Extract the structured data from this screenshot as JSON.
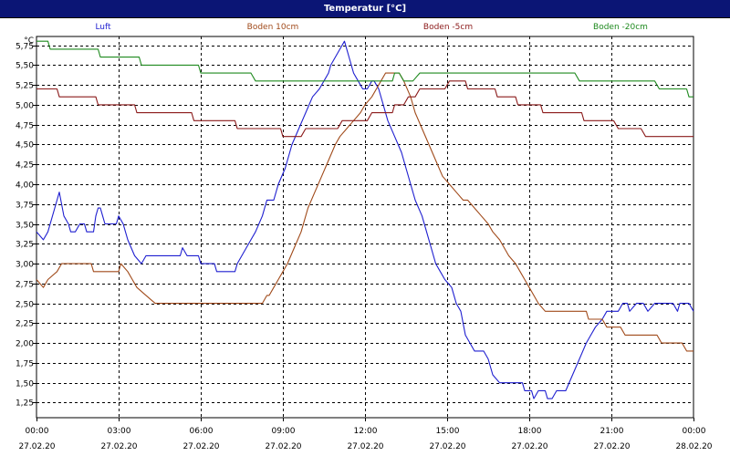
{
  "window": {
    "title": "Temperatur [°C]"
  },
  "colors": {
    "titlebar_bg": "#0b1575",
    "grid": "#000000",
    "series": [
      "#1f1fd0",
      "#a04a1a",
      "#8b1a1a",
      "#1f8a1f"
    ]
  },
  "chart_data": {
    "type": "line",
    "title": "Temperatur [°C]",
    "ylabel": "°C",
    "xlabel": "",
    "ylim": [
      1.06,
      5.86
    ],
    "xlim": [
      "27.02.20 00:00",
      "28.02.20 00:00"
    ],
    "grid": true,
    "legend_position": "top",
    "y_ticks": [
      "1,25",
      "1,50",
      "1,75",
      "2,00",
      "2,25",
      "2,50",
      "2,75",
      "3,00",
      "3,25",
      "3,50",
      "3,75",
      "4,00",
      "4,25",
      "4,50",
      "4,75",
      "5,00",
      "5,25",
      "5,50",
      "5,75"
    ],
    "x_ticks": [
      {
        "time": "00:00",
        "date": "27.02.20"
      },
      {
        "time": "03:00",
        "date": "27.02.20"
      },
      {
        "time": "06:00",
        "date": "27.02.20"
      },
      {
        "time": "09:00",
        "date": "27.02.20"
      },
      {
        "time": "12:00",
        "date": "27.02.20"
      },
      {
        "time": "15:00",
        "date": "27.02.20"
      },
      {
        "time": "18:00",
        "date": "27.02.20"
      },
      {
        "time": "21:00",
        "date": "27.02.20"
      },
      {
        "time": "00:00",
        "date": "28.02.20"
      }
    ],
    "series": [
      {
        "name": "Luft",
        "points": [
          [
            "00:00",
            3.4
          ],
          [
            "00:15",
            3.3
          ],
          [
            "00:25",
            3.4
          ],
          [
            "00:40",
            3.7
          ],
          [
            "00:45",
            3.8
          ],
          [
            "00:50",
            3.9
          ],
          [
            "01:00",
            3.6
          ],
          [
            "01:10",
            3.5
          ],
          [
            "01:15",
            3.4
          ],
          [
            "01:25",
            3.4
          ],
          [
            "01:35",
            3.5
          ],
          [
            "01:45",
            3.5
          ],
          [
            "01:50",
            3.4
          ],
          [
            "02:05",
            3.4
          ],
          [
            "02:10",
            3.6
          ],
          [
            "02:15",
            3.7
          ],
          [
            "02:20",
            3.7
          ],
          [
            "02:25",
            3.6
          ],
          [
            "02:30",
            3.5
          ],
          [
            "02:55",
            3.5
          ],
          [
            "03:00",
            3.6
          ],
          [
            "03:10",
            3.5
          ],
          [
            "03:20",
            3.3
          ],
          [
            "03:35",
            3.1
          ],
          [
            "03:50",
            3.0
          ],
          [
            "04:00",
            3.1
          ],
          [
            "05:15",
            3.1
          ],
          [
            "05:20",
            3.2
          ],
          [
            "05:30",
            3.1
          ],
          [
            "05:55",
            3.1
          ],
          [
            "06:00",
            3.0
          ],
          [
            "06:30",
            3.0
          ],
          [
            "06:35",
            2.9
          ],
          [
            "07:15",
            2.9
          ],
          [
            "07:20",
            3.0
          ],
          [
            "07:50",
            3.3
          ],
          [
            "08:00",
            3.4
          ],
          [
            "08:15",
            3.6
          ],
          [
            "08:25",
            3.8
          ],
          [
            "08:40",
            3.8
          ],
          [
            "08:50",
            4.0
          ],
          [
            "09:05",
            4.2
          ],
          [
            "09:20",
            4.5
          ],
          [
            "09:35",
            4.7
          ],
          [
            "09:50",
            4.9
          ],
          [
            "10:05",
            5.1
          ],
          [
            "10:20",
            5.2
          ],
          [
            "10:30",
            5.3
          ],
          [
            "10:40",
            5.4
          ],
          [
            "10:45",
            5.5
          ],
          [
            "10:55",
            5.6
          ],
          [
            "11:05",
            5.7
          ],
          [
            "11:15",
            5.8
          ],
          [
            "11:25",
            5.6
          ],
          [
            "11:35",
            5.4
          ],
          [
            "11:45",
            5.3
          ],
          [
            "11:55",
            5.2
          ],
          [
            "12:05",
            5.2
          ],
          [
            "12:15",
            5.3
          ],
          [
            "12:20",
            5.3
          ],
          [
            "12:30",
            5.2
          ],
          [
            "12:40",
            5.0
          ],
          [
            "12:50",
            4.8
          ],
          [
            "13:05",
            4.6
          ],
          [
            "13:20",
            4.4
          ],
          [
            "13:30",
            4.2
          ],
          [
            "13:40",
            4.0
          ],
          [
            "13:50",
            3.8
          ],
          [
            "14:05",
            3.6
          ],
          [
            "14:15",
            3.4
          ],
          [
            "14:25",
            3.2
          ],
          [
            "14:35",
            3.0
          ],
          [
            "14:45",
            2.9
          ],
          [
            "14:55",
            2.8
          ],
          [
            "15:10",
            2.7
          ],
          [
            "15:20",
            2.5
          ],
          [
            "15:30",
            2.4
          ],
          [
            "15:40",
            2.1
          ],
          [
            "15:50",
            2.0
          ],
          [
            "16:00",
            1.9
          ],
          [
            "16:20",
            1.9
          ],
          [
            "16:30",
            1.8
          ],
          [
            "16:40",
            1.6
          ],
          [
            "16:55",
            1.5
          ],
          [
            "17:45",
            1.5
          ],
          [
            "17:50",
            1.4
          ],
          [
            "18:05",
            1.4
          ],
          [
            "18:10",
            1.3
          ],
          [
            "18:20",
            1.4
          ],
          [
            "18:35",
            1.4
          ],
          [
            "18:40",
            1.3
          ],
          [
            "18:50",
            1.3
          ],
          [
            "19:00",
            1.4
          ],
          [
            "19:20",
            1.4
          ],
          [
            "19:35",
            1.6
          ],
          [
            "19:50",
            1.8
          ],
          [
            "20:05",
            2.0
          ],
          [
            "20:15",
            2.1
          ],
          [
            "20:25",
            2.2
          ],
          [
            "20:40",
            2.3
          ],
          [
            "20:50",
            2.4
          ],
          [
            "21:15",
            2.4
          ],
          [
            "21:25",
            2.5
          ],
          [
            "21:35",
            2.5
          ],
          [
            "21:40",
            2.4
          ],
          [
            "21:55",
            2.5
          ],
          [
            "22:10",
            2.5
          ],
          [
            "22:20",
            2.4
          ],
          [
            "22:35",
            2.5
          ],
          [
            "23:15",
            2.5
          ],
          [
            "23:25",
            2.4
          ],
          [
            "23:30",
            2.5
          ],
          [
            "23:50",
            2.5
          ],
          [
            "24:00",
            2.4
          ]
        ]
      },
      {
        "name": "Boden 10cm",
        "points": [
          [
            "00:00",
            2.8
          ],
          [
            "00:15",
            2.7
          ],
          [
            "00:25",
            2.8
          ],
          [
            "00:45",
            2.9
          ],
          [
            "00:55",
            3.0
          ],
          [
            "02:00",
            3.0
          ],
          [
            "02:05",
            2.9
          ],
          [
            "03:00",
            2.9
          ],
          [
            "03:05",
            3.0
          ],
          [
            "03:20",
            2.9
          ],
          [
            "03:30",
            2.8
          ],
          [
            "03:40",
            2.7
          ],
          [
            "04:00",
            2.6
          ],
          [
            "04:20",
            2.5
          ],
          [
            "04:30",
            2.5
          ],
          [
            "08:15",
            2.5
          ],
          [
            "08:25",
            2.6
          ],
          [
            "08:30",
            2.6
          ],
          [
            "08:40",
            2.7
          ],
          [
            "08:50",
            2.8
          ],
          [
            "09:00",
            2.9
          ],
          [
            "09:10",
            3.0
          ],
          [
            "09:25",
            3.2
          ],
          [
            "09:40",
            3.4
          ],
          [
            "09:55",
            3.7
          ],
          [
            "10:10",
            3.9
          ],
          [
            "10:25",
            4.1
          ],
          [
            "10:40",
            4.3
          ],
          [
            "10:55",
            4.5
          ],
          [
            "11:05",
            4.6
          ],
          [
            "11:20",
            4.7
          ],
          [
            "11:35",
            4.8
          ],
          [
            "11:50",
            4.9
          ],
          [
            "12:00",
            5.0
          ],
          [
            "12:15",
            5.1
          ],
          [
            "12:25",
            5.2
          ],
          [
            "12:35",
            5.3
          ],
          [
            "12:45",
            5.4
          ],
          [
            "13:15",
            5.4
          ],
          [
            "13:25",
            5.3
          ],
          [
            "13:40",
            5.1
          ],
          [
            "13:50",
            4.9
          ],
          [
            "14:05",
            4.7
          ],
          [
            "14:20",
            4.5
          ],
          [
            "14:35",
            4.3
          ],
          [
            "14:50",
            4.1
          ],
          [
            "15:05",
            4.0
          ],
          [
            "15:20",
            3.9
          ],
          [
            "15:35",
            3.8
          ],
          [
            "15:45",
            3.8
          ],
          [
            "16:00",
            3.7
          ],
          [
            "16:15",
            3.6
          ],
          [
            "16:30",
            3.5
          ],
          [
            "16:40",
            3.4
          ],
          [
            "16:55",
            3.3
          ],
          [
            "17:05",
            3.2
          ],
          [
            "17:15",
            3.1
          ],
          [
            "17:30",
            3.0
          ],
          [
            "17:40",
            2.9
          ],
          [
            "17:50",
            2.8
          ],
          [
            "18:00",
            2.7
          ],
          [
            "18:10",
            2.6
          ],
          [
            "18:20",
            2.5
          ],
          [
            "18:35",
            2.4
          ],
          [
            "20:05",
            2.4
          ],
          [
            "20:10",
            2.3
          ],
          [
            "20:40",
            2.3
          ],
          [
            "20:50",
            2.2
          ],
          [
            "21:20",
            2.2
          ],
          [
            "21:30",
            2.1
          ],
          [
            "22:40",
            2.1
          ],
          [
            "22:50",
            2.0
          ],
          [
            "23:35",
            2.0
          ],
          [
            "23:45",
            1.9
          ],
          [
            "24:00",
            1.9
          ]
        ]
      },
      {
        "name": "Boden -5cm",
        "points": [
          [
            "00:00",
            5.2
          ],
          [
            "00:45",
            5.2
          ],
          [
            "00:50",
            5.1
          ],
          [
            "02:10",
            5.1
          ],
          [
            "02:15",
            5.0
          ],
          [
            "03:35",
            5.0
          ],
          [
            "03:40",
            4.9
          ],
          [
            "05:40",
            4.9
          ],
          [
            "05:45",
            4.8
          ],
          [
            "07:15",
            4.8
          ],
          [
            "07:20",
            4.7
          ],
          [
            "08:55",
            4.7
          ],
          [
            "09:00",
            4.6
          ],
          [
            "09:40",
            4.6
          ],
          [
            "09:50",
            4.7
          ],
          [
            "11:00",
            4.7
          ],
          [
            "11:10",
            4.8
          ],
          [
            "12:05",
            4.8
          ],
          [
            "12:15",
            4.9
          ],
          [
            "13:00",
            4.9
          ],
          [
            "13:05",
            5.0
          ],
          [
            "13:25",
            5.0
          ],
          [
            "13:35",
            5.1
          ],
          [
            "13:50",
            5.1
          ],
          [
            "14:00",
            5.2
          ],
          [
            "14:55",
            5.2
          ],
          [
            "15:05",
            5.3
          ],
          [
            "15:40",
            5.3
          ],
          [
            "15:45",
            5.2
          ],
          [
            "16:45",
            5.2
          ],
          [
            "16:50",
            5.1
          ],
          [
            "17:30",
            5.1
          ],
          [
            "17:35",
            5.0
          ],
          [
            "18:25",
            5.0
          ],
          [
            "18:30",
            4.9
          ],
          [
            "19:55",
            4.9
          ],
          [
            "20:00",
            4.8
          ],
          [
            "21:05",
            4.8
          ],
          [
            "21:15",
            4.7
          ],
          [
            "22:05",
            4.7
          ],
          [
            "22:15",
            4.6
          ],
          [
            "24:00",
            4.6
          ]
        ]
      },
      {
        "name": "Boden -20cm",
        "points": [
          [
            "00:00",
            5.8
          ],
          [
            "00:25",
            5.8
          ],
          [
            "00:30",
            5.7
          ],
          [
            "02:15",
            5.7
          ],
          [
            "02:20",
            5.6
          ],
          [
            "03:45",
            5.6
          ],
          [
            "03:50",
            5.5
          ],
          [
            "05:55",
            5.5
          ],
          [
            "06:00",
            5.4
          ],
          [
            "07:50",
            5.4
          ],
          [
            "08:00",
            5.3
          ],
          [
            "13:00",
            5.3
          ],
          [
            "13:05",
            5.4
          ],
          [
            "13:15",
            5.4
          ],
          [
            "13:25",
            5.3
          ],
          [
            "13:45",
            5.3
          ],
          [
            "14:00",
            5.4
          ],
          [
            "19:40",
            5.4
          ],
          [
            "19:50",
            5.3
          ],
          [
            "22:35",
            5.3
          ],
          [
            "22:45",
            5.2
          ],
          [
            "23:45",
            5.2
          ],
          [
            "23:50",
            5.1
          ],
          [
            "24:00",
            5.1
          ]
        ]
      }
    ]
  }
}
